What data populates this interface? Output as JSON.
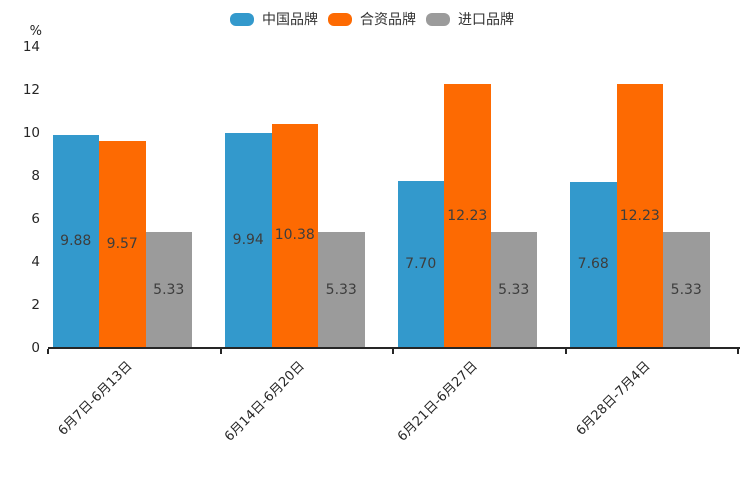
{
  "chart_data": {
    "type": "bar",
    "title": "",
    "ylabel": "%",
    "xlabel": "",
    "categories": [
      "6月7日-6月13日",
      "6月14日-6月20日",
      "6月21日-6月27日",
      "6月28日-7月4日"
    ],
    "series": [
      {
        "name": "中国品牌",
        "color": "#3399cc",
        "values": [
          9.88,
          9.94,
          7.7,
          7.68
        ]
      },
      {
        "name": "合资品牌",
        "color": "#fd6a02",
        "values": [
          9.57,
          10.38,
          12.23,
          12.23
        ]
      },
      {
        "name": "进口品牌",
        "color": "#9b9b9b",
        "values": [
          5.33,
          5.33,
          5.33,
          5.33
        ]
      }
    ],
    "value_label_decimals": 2,
    "ylim": [
      0,
      14
    ],
    "yticks": [
      0,
      2,
      4,
      6,
      8,
      10,
      12,
      14
    ],
    "legend_position": "top-center",
    "grid": false,
    "colors": {
      "axis": "#262626",
      "tick_text": "#262626",
      "value_label_text": "#3d3d3d",
      "background": "#ffffff"
    }
  }
}
